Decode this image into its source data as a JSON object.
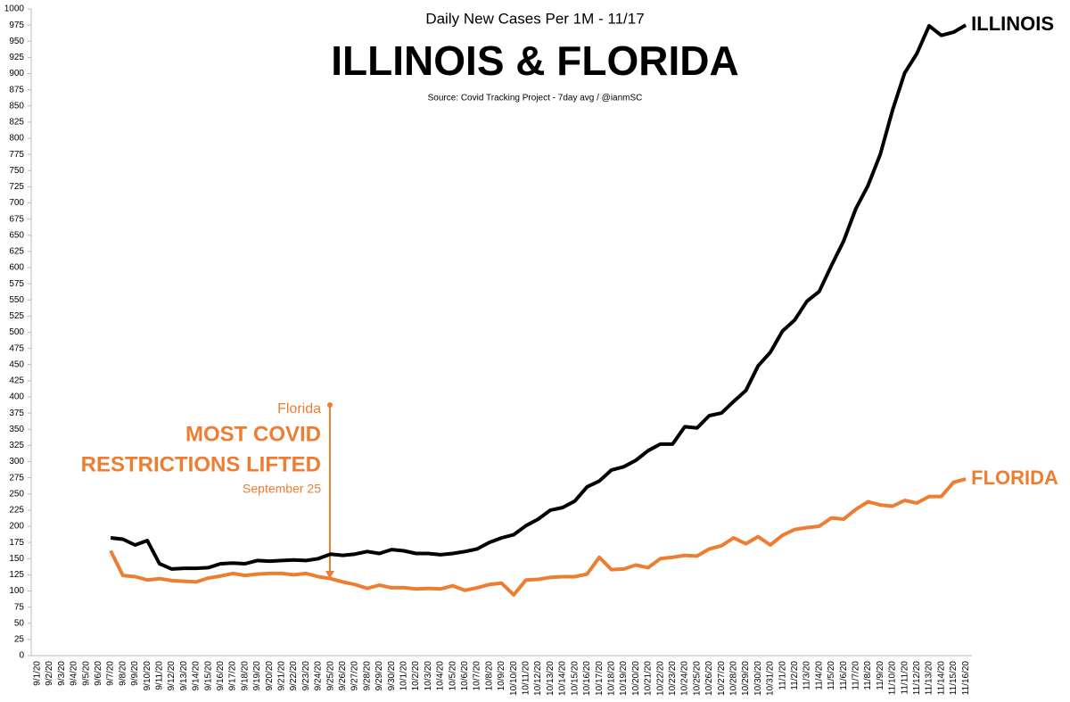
{
  "chart_data": {
    "type": "line",
    "subtitle": "Daily New Cases Per 1M - 11/17",
    "title": "ILLINOIS & FLORIDA",
    "source": "Source: Covid Tracking Project - 7day avg / @ianmSC",
    "annotations": [
      "Florida",
      "MOST COVID",
      "RESTRICTIONS LIFTED",
      "September 25"
    ],
    "categories": [
      "9/1/20",
      "9/2/20",
      "9/3/20",
      "9/4/20",
      "9/5/20",
      "9/6/20",
      "9/7/20",
      "9/8/20",
      "9/9/20",
      "9/10/20",
      "9/11/20",
      "9/12/20",
      "9/13/20",
      "9/14/20",
      "9/15/20",
      "9/16/20",
      "9/17/20",
      "9/18/20",
      "9/19/20",
      "9/20/20",
      "9/21/20",
      "9/22/20",
      "9/23/20",
      "9/24/20",
      "9/25/20",
      "9/26/20",
      "9/27/20",
      "9/28/20",
      "9/29/20",
      "9/30/20",
      "10/1/20",
      "10/2/20",
      "10/3/20",
      "10/4/20",
      "10/5/20",
      "10/6/20",
      "10/7/20",
      "10/8/20",
      "10/9/20",
      "10/10/20",
      "10/11/20",
      "10/12/20",
      "10/13/20",
      "10/14/20",
      "10/15/20",
      "10/16/20",
      "10/17/20",
      "10/18/20",
      "10/19/20",
      "10/20/20",
      "10/21/20",
      "10/22/20",
      "10/23/20",
      "10/24/20",
      "10/25/20",
      "10/26/20",
      "10/27/20",
      "10/28/20",
      "10/29/20",
      "10/30/20",
      "10/31/20",
      "11/1/20",
      "11/2/20",
      "11/3/20",
      "11/4/20",
      "11/5/20",
      "11/6/20",
      "11/7/20",
      "11/8/20",
      "11/9/20",
      "11/10/20",
      "11/11/20",
      "11/12/20",
      "11/13/20",
      "11/14/20",
      "11/15/20",
      "11/16/20"
    ],
    "series": [
      {
        "name": "ILLINOIS",
        "color": "#000000",
        "values": [
          null,
          null,
          null,
          null,
          null,
          null,
          182,
          180,
          171,
          178,
          142,
          134,
          135,
          135,
          136,
          142,
          143,
          142,
          147,
          146,
          147,
          148,
          147,
          150,
          157,
          155,
          157,
          161,
          158,
          164,
          162,
          158,
          158,
          156,
          158,
          161,
          165,
          175,
          182,
          187,
          201,
          211,
          225,
          229,
          239,
          261,
          270,
          287,
          292,
          302,
          317,
          327,
          327,
          354,
          352,
          371,
          375,
          393,
          410,
          448,
          469,
          502,
          519,
          548,
          563,
          603,
          641,
          691,
          727,
          775,
          843,
          901,
          931,
          974,
          959,
          964,
          975
        ]
      },
      {
        "name": "FLORIDA",
        "color": "#ed7d31",
        "values": [
          null,
          null,
          null,
          null,
          null,
          null,
          162,
          124,
          122,
          117,
          119,
          116,
          115,
          114,
          120,
          123,
          127,
          124,
          126,
          127,
          127,
          125,
          127,
          122,
          119,
          114,
          110,
          104,
          109,
          105,
          105,
          103,
          104,
          103,
          108,
          101,
          105,
          110,
          112,
          94,
          117,
          118,
          121,
          122,
          122,
          126,
          152,
          133,
          134,
          140,
          136,
          150,
          152,
          155,
          154,
          165,
          170,
          182,
          173,
          184,
          171,
          186,
          195,
          198,
          200,
          213,
          211,
          226,
          238,
          233,
          231,
          240,
          236,
          246,
          246,
          268,
          273
        ]
      }
    ],
    "ylim": [
      0,
      1000
    ],
    "yticks": [
      0,
      25,
      50,
      75,
      100,
      125,
      150,
      175,
      200,
      225,
      250,
      275,
      300,
      325,
      350,
      375,
      400,
      425,
      450,
      475,
      500,
      525,
      550,
      575,
      600,
      625,
      650,
      675,
      700,
      725,
      750,
      775,
      800,
      825,
      850,
      875,
      900,
      925,
      950,
      975,
      1000
    ],
    "grid": false
  }
}
